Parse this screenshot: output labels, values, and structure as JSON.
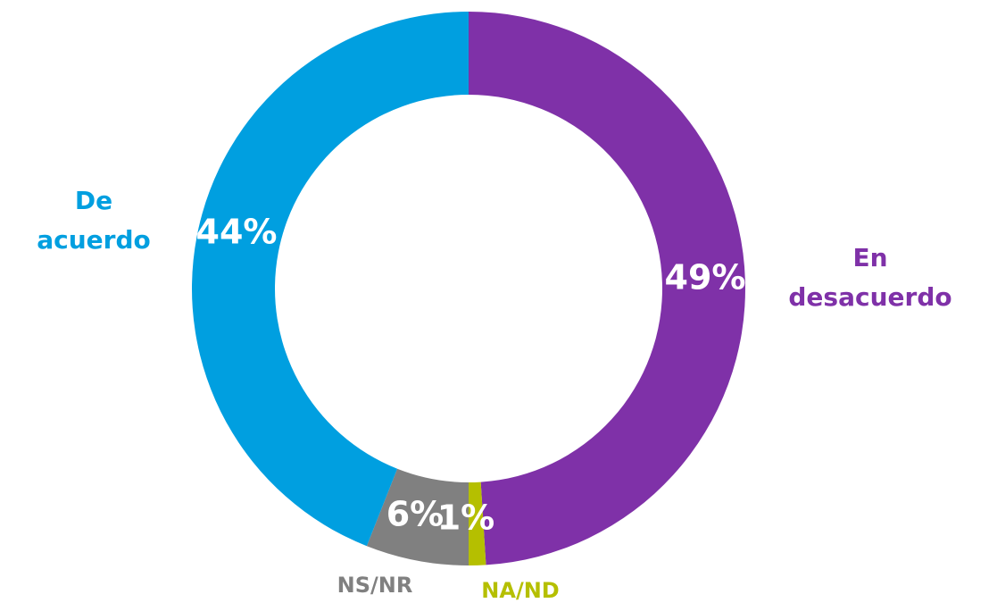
{
  "chart_data": {
    "type": "donut",
    "categories": [
      "En desacuerdo",
      "NA/ND",
      "NS/NR",
      "De acuerdo"
    ],
    "values": [
      49,
      1,
      6,
      44
    ],
    "value_labels": [
      "49%",
      "1%",
      "6%",
      "44%"
    ],
    "colors": [
      "#7f31a8",
      "#b5bf00",
      "#808080",
      "#009fe0"
    ]
  }
}
